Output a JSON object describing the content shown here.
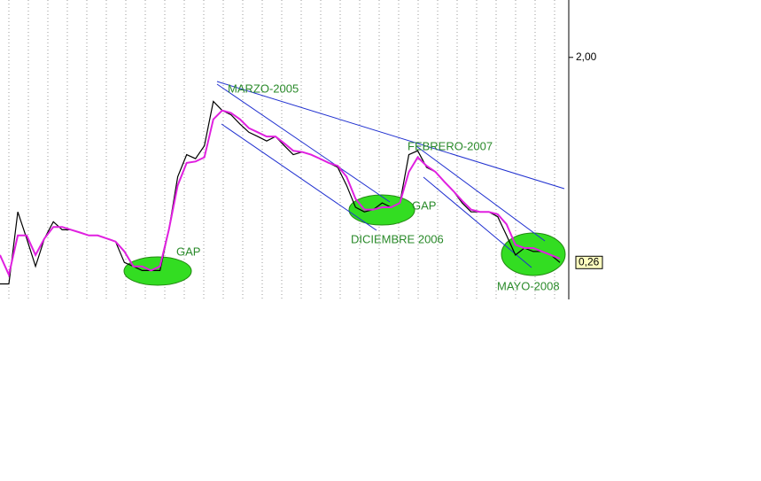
{
  "chart_data": {
    "type": "line",
    "log_scale": true,
    "grid": true,
    "ylim": [
      0.18,
      3.54
    ],
    "yticks": [
      {
        "value": 2,
        "label": "2,00"
      }
    ],
    "series": [
      {
        "color": "#000000",
        "values": [
          0.21,
          0.21,
          0.43,
          0.33,
          0.25,
          0.33,
          0.39,
          0.36,
          0.36,
          0.35,
          0.34,
          0.34,
          0.33,
          0.32,
          0.26,
          0.25,
          0.24,
          0.24,
          0.24,
          0.36,
          0.61,
          0.76,
          0.73,
          0.83,
          1.29,
          1.18,
          1.13,
          1.03,
          0.95,
          0.91,
          0.87,
          0.91,
          0.83,
          0.76,
          0.78,
          0.76,
          0.73,
          0.7,
          0.67,
          0.56,
          0.45,
          0.43,
          0.44,
          0.47,
          0.45,
          0.47,
          0.76,
          0.79,
          0.67,
          0.64,
          0.58,
          0.53,
          0.47,
          0.43,
          0.43,
          0.43,
          0.41,
          0.34,
          0.28,
          0.3,
          0.29,
          0.29,
          0.28,
          0.26
        ],
        "value_labels": [
          null,
          null,
          null,
          null,
          null,
          null,
          null,
          null,
          null,
          null,
          null,
          null,
          null,
          null,
          null,
          null,
          null,
          null,
          null,
          null,
          null,
          null,
          null,
          null,
          null,
          null,
          null,
          null,
          null,
          null,
          null,
          null,
          null,
          null,
          null,
          null,
          null,
          null,
          null,
          null,
          null,
          null,
          null,
          null,
          null,
          null,
          null,
          null,
          null,
          null,
          null,
          null,
          null,
          null,
          null,
          null,
          null,
          null,
          null,
          null,
          null,
          null,
          null,
          "0,26"
        ]
      },
      {
        "color": "#e020e0",
        "values": [
          0.28,
          0.23,
          0.34,
          0.34,
          0.28,
          0.33,
          0.37,
          0.37,
          0.36,
          0.35,
          0.34,
          0.34,
          0.33,
          0.32,
          0.29,
          0.25,
          0.25,
          0.24,
          0.25,
          0.36,
          0.56,
          0.7,
          0.71,
          0.74,
          1.08,
          1.18,
          1.15,
          1.08,
          0.99,
          0.95,
          0.91,
          0.91,
          0.85,
          0.79,
          0.78,
          0.76,
          0.73,
          0.7,
          0.68,
          0.61,
          0.49,
          0.44,
          0.44,
          0.45,
          0.45,
          0.47,
          0.64,
          0.74,
          0.68,
          0.64,
          0.58,
          0.53,
          0.48,
          0.44,
          0.43,
          0.43,
          0.42,
          0.38,
          0.31,
          0.3,
          0.3,
          0.29,
          0.28,
          0.27
        ]
      }
    ],
    "annotations": [
      "MARZO-2005",
      "FEBRERO-2007",
      "DICIEMBRE 2006",
      "MAYO-2008",
      "GAP",
      "GAP"
    ]
  }
}
